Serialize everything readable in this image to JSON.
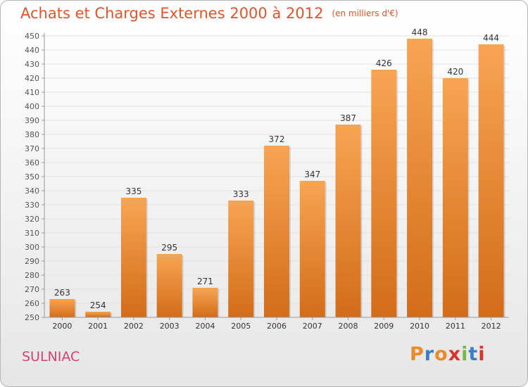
{
  "header": {
    "title": "Achats et Charges Externes 2000 à 2012",
    "unit": "(en milliers d'€)"
  },
  "footer": {
    "location": "SULNIAC",
    "logo": "Proxiti",
    "logo_colors": [
      "#e98b2a",
      "#3d7fc4",
      "#e98b2a",
      "#d8342c",
      "#7ab642",
      "#3d7fc4",
      "#d8342c"
    ]
  },
  "colors": {
    "bar_light": "#f7a553",
    "bar_dark": "#d36c18",
    "axis": "#999999",
    "grid": "#e2e2e2"
  },
  "chart_data": {
    "type": "bar",
    "title": "Achats et Charges Externes 2000 à 2012",
    "subtitle": "(en milliers d'€)",
    "xlabel": "",
    "ylabel": "",
    "categories": [
      "2000",
      "2001",
      "2002",
      "2003",
      "2004",
      "2005",
      "2006",
      "2007",
      "2008",
      "2009",
      "2010",
      "2011",
      "2012"
    ],
    "values": [
      263,
      254,
      335,
      295,
      271,
      333,
      372,
      347,
      387,
      426,
      448,
      420,
      444
    ],
    "ylim": [
      250,
      450
    ],
    "yticks": [
      250,
      260,
      270,
      280,
      290,
      300,
      310,
      320,
      330,
      340,
      350,
      360,
      370,
      380,
      390,
      400,
      410,
      420,
      430,
      440,
      450
    ],
    "grid": true,
    "legend": "none"
  }
}
